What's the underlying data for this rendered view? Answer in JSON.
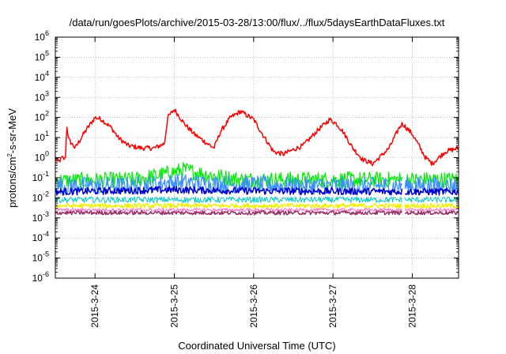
{
  "chart_data": {
    "type": "line",
    "title": "/data/run/goesPlots/archive/2015-03-28/13:00/flux/../flux/5daysEarthDataFluxes.txt",
    "xlabel": "Coordinated Universal Time (UTC)",
    "ylabel": {
      "base": "protons/cm",
      "sup": "2",
      "rest": "-s-sr-MeV"
    },
    "y_scale": "log",
    "ylim": [
      1e-06,
      1000000.0
    ],
    "y_ticks": [
      {
        "value": 1e-06,
        "base": "10",
        "exp": "-6"
      },
      {
        "value": 1e-05,
        "base": "10",
        "exp": "-5"
      },
      {
        "value": 0.0001,
        "base": "10",
        "exp": "-4"
      },
      {
        "value": 0.001,
        "base": "10",
        "exp": "-3"
      },
      {
        "value": 0.01,
        "base": "10",
        "exp": "-2"
      },
      {
        "value": 0.1,
        "base": "10",
        "exp": "-1"
      },
      {
        "value": 1.0,
        "base": "10",
        "exp": "0"
      },
      {
        "value": 10.0,
        "base": "10",
        "exp": "1"
      },
      {
        "value": 100.0,
        "base": "10",
        "exp": "2"
      },
      {
        "value": 1000.0,
        "base": "10",
        "exp": "3"
      },
      {
        "value": 10000.0,
        "base": "10",
        "exp": "4"
      },
      {
        "value": 100000.0,
        "base": "10",
        "exp": "5"
      },
      {
        "value": 1000000.0,
        "base": "10",
        "exp": "6"
      }
    ],
    "xlim": [
      "2015-03-23 12:00",
      "2015-03-28 14:00"
    ],
    "x_ticks": [
      {
        "value": "2015-03-24 00:00",
        "label": "2015-3-24"
      },
      {
        "value": "2015-03-25 00:00",
        "label": "2015-3-25"
      },
      {
        "value": "2015-03-26 00:00",
        "label": "2015-3-26"
      },
      {
        "value": "2015-03-27 00:00",
        "label": "2015-3-27"
      },
      {
        "value": "2015-03-28 00:00",
        "label": "2015-3-28"
      }
    ],
    "grid": true,
    "data_gap": [
      "2015-03-27 21:00",
      "2015-03-27 21:45"
    ],
    "series": [
      {
        "color": "#ff0000",
        "width": 1.5,
        "noise": 0.12,
        "gap": false,
        "x": [
          "2015-03-23 12:00",
          "2015-03-23 13:00",
          "2015-03-23 14:00",
          "2015-03-23 15:00",
          "2015-03-23 15:30",
          "2015-03-23 16:00",
          "2015-03-23 18:00",
          "2015-03-23 21:00",
          "2015-03-24 00:00",
          "2015-03-24 02:00",
          "2015-03-24 05:00",
          "2015-03-24 07:00",
          "2015-03-24 10:00",
          "2015-03-24 14:00",
          "2015-03-24 18:00",
          "2015-03-24 21:00",
          "2015-03-24 22:00",
          "2015-03-25 00:00",
          "2015-03-25 03:00",
          "2015-03-25 06:00",
          "2015-03-25 10:00",
          "2015-03-25 12:00",
          "2015-03-25 14:00",
          "2015-03-25 17:00",
          "2015-03-25 20:00",
          "2015-03-26 00:00",
          "2015-03-26 03:00",
          "2015-03-26 06:00",
          "2015-03-26 09:00",
          "2015-03-26 12:00",
          "2015-03-26 15:00",
          "2015-03-26 19:00",
          "2015-03-26 23:00",
          "2015-03-27 01:00",
          "2015-03-27 03:00",
          "2015-03-27 06:00",
          "2015-03-27 09:00",
          "2015-03-27 12:00",
          "2015-03-27 14:00",
          "2015-03-27 17:00",
          "2015-03-27 20:00",
          "2015-03-27 21:00",
          "2015-03-28 00:00",
          "2015-03-28 02:00",
          "2015-03-28 03:00",
          "2015-03-28 04:00",
          "2015-03-28 06:00",
          "2015-03-28 10:00",
          "2015-03-28 14:00"
        ],
        "y": [
          1.0,
          0.6,
          1.0,
          0.8,
          40,
          8,
          3,
          20,
          100,
          80,
          30,
          10,
          4,
          3,
          3,
          5,
          100,
          250,
          50,
          15,
          5,
          3,
          20,
          100,
          200,
          80,
          12,
          2,
          1.5,
          2.5,
          4,
          20,
          80,
          50,
          20,
          3,
          0.8,
          0.5,
          1,
          3,
          30,
          50,
          15,
          4,
          2,
          1,
          0.5,
          2,
          3
        ]
      },
      {
        "color": "#00ee00",
        "width": 1.2,
        "noise": 0.4,
        "gap": true,
        "x": [
          "2015-03-23 12:00",
          "2015-03-24 12:00",
          "2015-03-24 21:00",
          "2015-03-25 03:00",
          "2015-03-25 09:00",
          "2015-03-25 20:00",
          "2015-03-26 12:00",
          "2015-03-27 12:00",
          "2015-03-28 14:00"
        ],
        "y": [
          0.07,
          0.08,
          0.15,
          0.25,
          0.15,
          0.08,
          0.08,
          0.08,
          0.08
        ]
      },
      {
        "color": "#3a8eff",
        "width": 1.2,
        "noise": 0.45,
        "gap": true,
        "x": [
          "2015-03-23 12:00",
          "2015-03-24 12:00",
          "2015-03-25 00:00",
          "2015-03-25 12:00",
          "2015-03-26 12:00",
          "2015-03-28 14:00"
        ],
        "y": [
          0.04,
          0.04,
          0.06,
          0.05,
          0.04,
          0.04
        ]
      },
      {
        "color": "#0000cc",
        "width": 1.5,
        "noise": 0.18,
        "gap": true,
        "x": [
          "2015-03-23 12:00",
          "2015-03-25 00:00",
          "2015-03-26 00:00",
          "2015-03-28 14:00"
        ],
        "y": [
          0.02,
          0.025,
          0.022,
          0.02
        ]
      },
      {
        "color": "#00c8c8",
        "width": 1.0,
        "noise": 0.15,
        "gap": true,
        "x": [
          "2015-03-23 12:00",
          "2015-03-28 14:00"
        ],
        "y": [
          0.008,
          0.008
        ]
      },
      {
        "color": "#eeee00",
        "width": 1.4,
        "noise": 0.12,
        "gap": true,
        "x": [
          "2015-03-23 12:00",
          "2015-03-28 14:00"
        ],
        "y": [
          0.004,
          0.004
        ]
      },
      {
        "color": "#ff66cc",
        "width": 1.0,
        "noise": 0.08,
        "gap": true,
        "x": [
          "2015-03-23 12:00",
          "2015-03-28 14:00"
        ],
        "y": [
          0.0025,
          0.0025
        ]
      },
      {
        "color": "#993366",
        "width": 1.5,
        "noise": 0.1,
        "gap": true,
        "x": [
          "2015-03-23 12:00",
          "2015-03-28 14:00"
        ],
        "y": [
          0.0018,
          0.0018
        ]
      }
    ]
  }
}
